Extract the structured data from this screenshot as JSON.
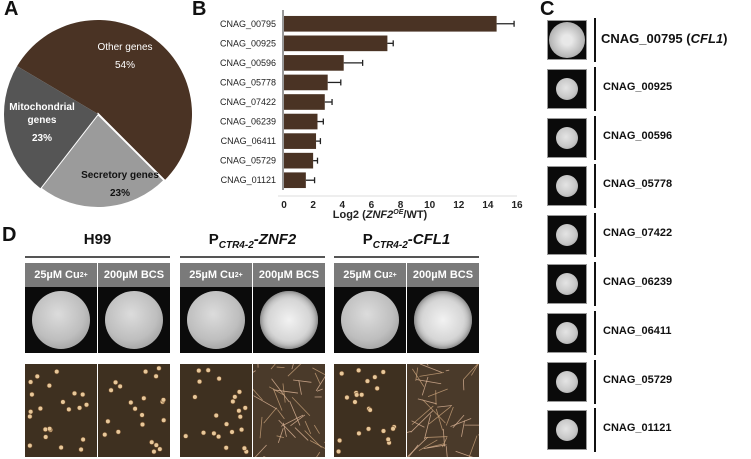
{
  "panels": {
    "a": "A",
    "b": "B",
    "c": "C",
    "d": "D"
  },
  "pie": {
    "slices": [
      {
        "label_lines": [
          "Other genes"
        ],
        "pct": "54%",
        "value": 54,
        "color": "#4a3324",
        "text_color": "#ffffff"
      },
      {
        "label_lines": [
          "Secretory genes"
        ],
        "pct": "23%",
        "value": 23,
        "color": "#9b9b9b",
        "text_color": "#111111"
      },
      {
        "label_lines": [
          "Mitochondrial",
          "genes"
        ],
        "pct": "23%",
        "value": 23,
        "color": "#555555",
        "text_color": "#ffffff"
      }
    ]
  },
  "chart_data": {
    "type": "bar",
    "orientation": "horizontal",
    "categories": [
      "CNAG_00795",
      "CNAG_00925",
      "CNAG_00596",
      "CNAG_05778",
      "CNAG_07422",
      "CNAG_06239",
      "CNAG_06411",
      "CNAG_05729",
      "CNAG_01121"
    ],
    "values": [
      14.6,
      7.1,
      4.1,
      3.0,
      2.8,
      2.3,
      2.2,
      2.0,
      1.5
    ],
    "errors": [
      1.2,
      0.4,
      1.3,
      0.9,
      0.5,
      0.4,
      0.3,
      0.3,
      0.6
    ],
    "xlabel_parts": [
      "Log2 (",
      "ZNF2",
      "OE",
      "/WT)"
    ],
    "xticks": [
      "0",
      "2",
      "4",
      "6",
      "8",
      "10",
      "12",
      "14",
      "16"
    ],
    "xlim": [
      0,
      16
    ],
    "bar_color": "#4a3324"
  },
  "panel_c": {
    "colonies": [
      {
        "label": "CNAG_00795",
        "label_suffix": " (",
        "italic": "CFL1",
        "close": ")",
        "large": true
      },
      {
        "label": "CNAG_00925"
      },
      {
        "label": "CNAG_00596"
      },
      {
        "label": "CNAG_05778"
      },
      {
        "label": "CNAG_07422"
      },
      {
        "label": "CNAG_06239"
      },
      {
        "label": "CNAG_06411"
      },
      {
        "label": "CNAG_05729"
      },
      {
        "label": "CNAG_01121"
      }
    ]
  },
  "panel_d": {
    "groups": [
      {
        "title": "H99",
        "prefix": "",
        "sub": "",
        "suffix": ""
      },
      {
        "title": "",
        "prefix": "P",
        "sub": "CTR4-2",
        "suffix": "-ZNF2"
      },
      {
        "title": "",
        "prefix": "P",
        "sub": "CTR4-2",
        "suffix": "-CFL1"
      }
    ],
    "conditions": [
      {
        "text": "25µM Cu",
        "sup": "2+"
      },
      {
        "text": "200µM BCS",
        "sup": ""
      }
    ],
    "plate_types": [
      "smooth",
      "smooth",
      "smooth",
      "filamentous",
      "smooth",
      "filamentous"
    ],
    "micro_types": [
      "yeast",
      "yeast",
      "yeast",
      "hyphae",
      "yeast",
      "hyphae"
    ]
  }
}
